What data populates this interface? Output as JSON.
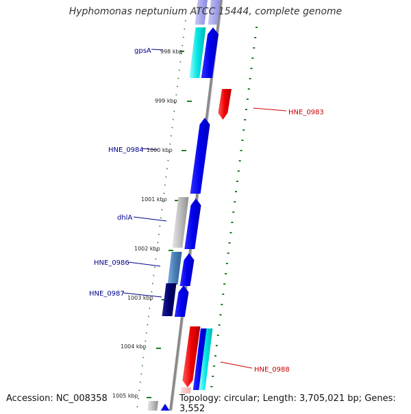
{
  "title": "Hyphomonas neptunium ATCC 15444, complete genome",
  "accession": "Accession: NC_008358",
  "topology": "Topology: circular; Length: 3,705,021 bp; Genes: 3,552",
  "colors": {
    "backbone": "#8a8a8a",
    "tick": "#1f7a1f",
    "forward_label": "#00008b",
    "reverse_label": "#cc0000",
    "blue": "#0000ee",
    "cyan": "#00e5e5",
    "red": "#ee0000",
    "gray": "#b5b5b5",
    "steel": "#4a7fb5",
    "navy": "#000070",
    "pale_red": "#f5c0c0"
  },
  "scale_labels": [
    "998 kbp",
    "999 kbp",
    "1000 kbp",
    "1001 kbp",
    "1002 kbp",
    "1003 kbp",
    "1004 kbp",
    "1005 kbp"
  ],
  "gene_labels": [
    {
      "name": "gpsA",
      "color": "forward_label"
    },
    {
      "name": "HNE_0983",
      "color": "reverse_label"
    },
    {
      "name": "HNE_0984",
      "color": "forward_label"
    },
    {
      "name": "dhlA",
      "color": "forward_label"
    },
    {
      "name": "HNE_0986",
      "color": "forward_label"
    },
    {
      "name": "HNE_0987",
      "color": "forward_label"
    },
    {
      "name": "HNE_0988",
      "color": "reverse_label"
    }
  ]
}
